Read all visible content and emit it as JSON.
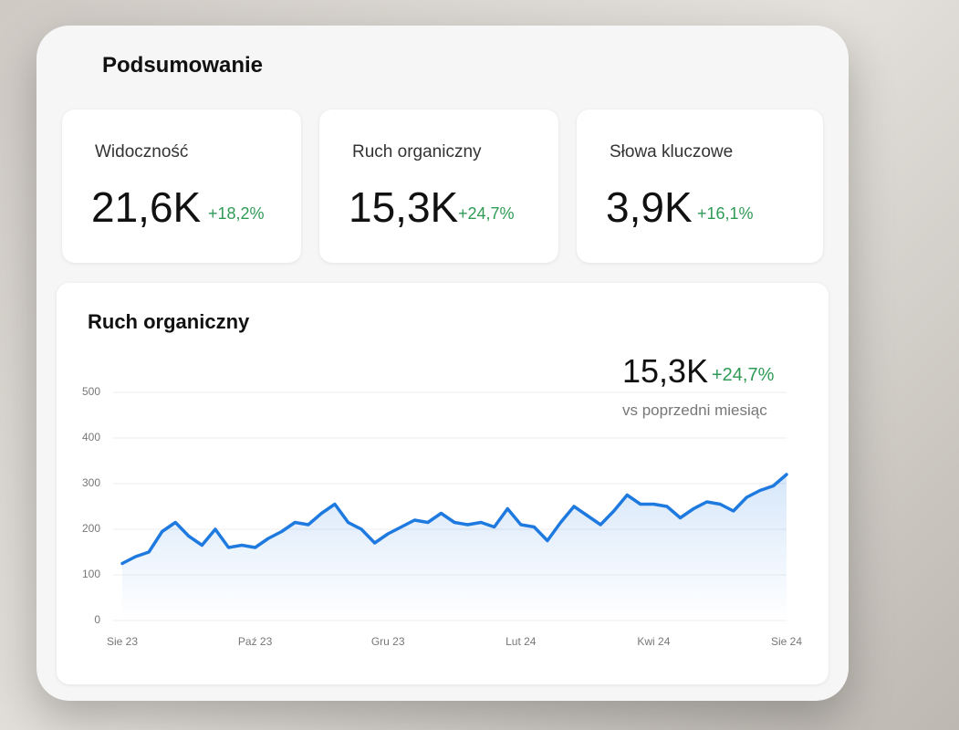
{
  "header": {
    "title": "Podsumowanie"
  },
  "kpis": [
    {
      "label": "Widoczność",
      "value": "21,6K",
      "change": "+18,2%"
    },
    {
      "label": "Ruch organiczny",
      "value": "15,3K",
      "change": "+24,7%"
    },
    {
      "label": "Słowa kluczowe",
      "value": "3,9K",
      "change": "+16,1%"
    }
  ],
  "chart_data": {
    "type": "line",
    "title": "Ruch organiczny",
    "summary_value": "15,3K",
    "summary_change": "+24,7%",
    "summary_note": "vs poprzedni miesiąc",
    "categories": [
      "Sie 23",
      null,
      null,
      null,
      null,
      null,
      null,
      null,
      null,
      null,
      "Paź 23",
      null,
      null,
      null,
      null,
      null,
      null,
      null,
      null,
      null,
      "Gru 23",
      null,
      null,
      null,
      null,
      null,
      null,
      null,
      null,
      null,
      "Lut 24",
      null,
      null,
      null,
      null,
      null,
      null,
      null,
      null,
      null,
      "Kwi 24",
      null,
      null,
      null,
      null,
      null,
      null,
      null,
      null,
      null,
      "Sie 24"
    ],
    "values": [
      125,
      140,
      150,
      195,
      215,
      185,
      165,
      200,
      160,
      165,
      160,
      180,
      195,
      215,
      210,
      235,
      255,
      215,
      200,
      170,
      190,
      205,
      220,
      215,
      235,
      215,
      210,
      215,
      205,
      245,
      210,
      205,
      175,
      215,
      250,
      230,
      210,
      240,
      275,
      255,
      255,
      250,
      225,
      245,
      260,
      255,
      240,
      270,
      285,
      295,
      320
    ],
    "color": "#1f7ae0",
    "ylim": [
      0,
      500
    ],
    "yticks": [
      0,
      100,
      200,
      300,
      400,
      500
    ],
    "grid": true
  }
}
